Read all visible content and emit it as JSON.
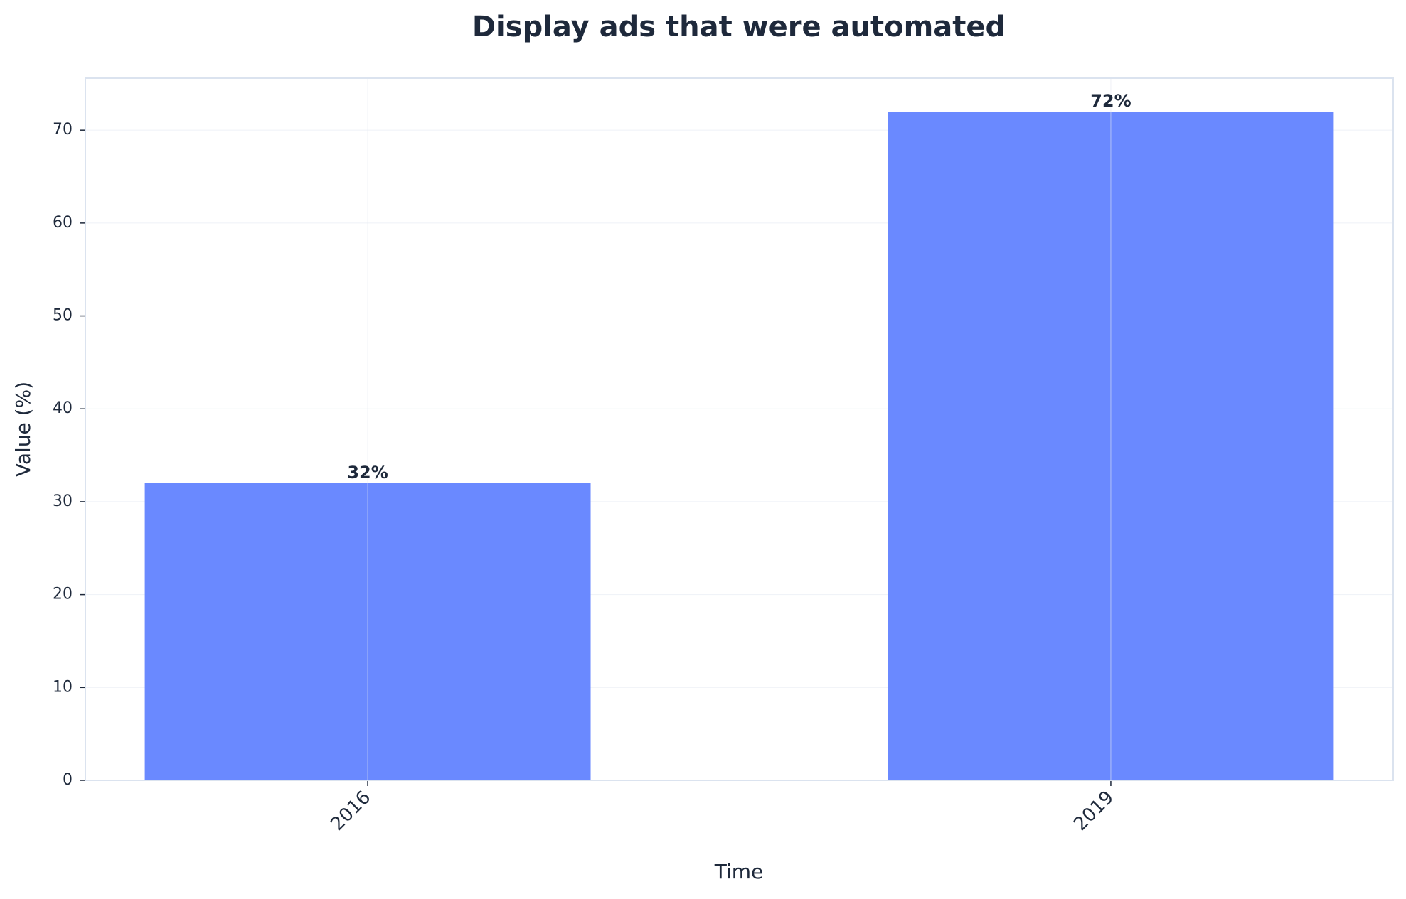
{
  "chart_data": {
    "type": "bar",
    "title": "Display ads that were automated",
    "x_label": "Time",
    "y_label": "Value (%)",
    "categories": [
      "2016",
      "2019"
    ],
    "values": [
      32,
      72
    ],
    "value_labels": [
      "32%",
      "72%"
    ],
    "color": "#6a89ff",
    "ylim": [
      0,
      75.6
    ],
    "yticks": [
      0,
      10,
      20,
      30,
      40,
      50,
      60,
      70
    ],
    "grid": true
  }
}
